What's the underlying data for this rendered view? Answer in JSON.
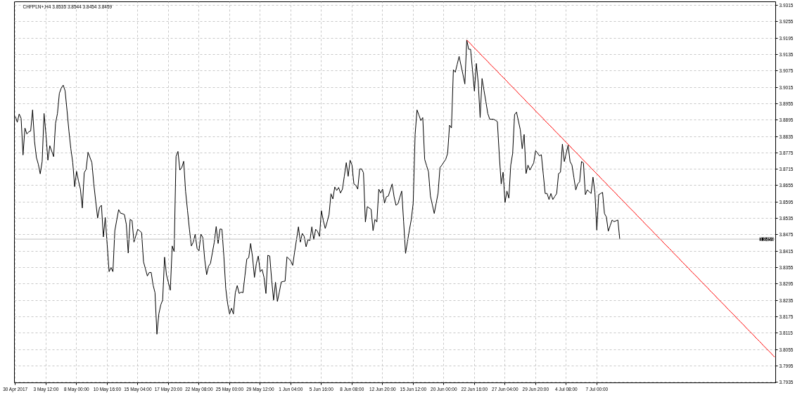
{
  "chart_data": {
    "type": "line",
    "title": "CHFPLN+,H4 3.8535 3.8544 3.8454 3.8459",
    "categories": [
      "30 Apr 2017",
      null,
      null,
      null,
      null,
      null,
      null,
      null,
      null,
      null,
      null,
      null,
      null,
      null,
      null,
      null,
      "3 May 12:00",
      null,
      null,
      null,
      null,
      null,
      null,
      null,
      null,
      null,
      null,
      null,
      null,
      null,
      null,
      null,
      "8 May 00:00",
      null,
      null,
      null,
      null,
      null,
      null,
      null,
      null,
      null,
      null,
      null,
      null,
      null,
      null,
      null,
      "10 May 16:00",
      null,
      null,
      null,
      null,
      null,
      null,
      null,
      null,
      null,
      null,
      null,
      null,
      null,
      null,
      null,
      "15 May 04:00",
      null,
      null,
      null,
      null,
      null,
      null,
      null,
      null,
      null,
      null,
      null,
      null,
      null,
      null,
      null,
      "17 May 20:00",
      null,
      null,
      null,
      null,
      null,
      null,
      null,
      null,
      null,
      null,
      null,
      null,
      null,
      null,
      null,
      "22 May 08:00",
      null,
      null,
      null,
      null,
      null,
      null,
      null,
      null,
      null,
      null,
      null,
      null,
      null,
      null,
      null,
      "25 May 00:00",
      null,
      null,
      null,
      null,
      null,
      null,
      null,
      null,
      null,
      null,
      null,
      null,
      null,
      null,
      null,
      "29 May 12:00",
      null,
      null,
      null,
      null,
      null,
      null,
      null,
      null,
      null,
      null,
      null,
      null,
      null,
      null,
      null,
      "1 Jun 04:00",
      null,
      null,
      null,
      null,
      null,
      null,
      null,
      null,
      null,
      null,
      null,
      null,
      null,
      null,
      null,
      "5 Jun 16:00",
      null,
      null,
      null,
      null,
      null,
      null,
      null,
      null,
      null,
      null,
      null,
      null,
      null,
      null,
      null,
      "8 Jun 08:00",
      null,
      null,
      null,
      null,
      null,
      null,
      null,
      null,
      null,
      null,
      null,
      null,
      null,
      null,
      null,
      "12 Jun 20:00",
      null,
      null,
      null,
      null,
      null,
      null,
      null,
      null,
      null,
      null,
      null,
      null,
      null,
      null,
      null,
      "15 Jun 12:00",
      null,
      null,
      null,
      null,
      null,
      null,
      null,
      null,
      null,
      null,
      null,
      null,
      null,
      null,
      null,
      "20 Jun 00:00",
      null,
      null,
      null,
      null,
      null,
      null,
      null,
      null,
      null,
      null,
      null,
      null,
      null,
      null,
      null,
      "22 Jun 16:00",
      null,
      null,
      null,
      null,
      null,
      null,
      null,
      null,
      null,
      null,
      null,
      null,
      null,
      null,
      null,
      "27 Jun 04:00",
      null,
      null,
      null,
      null,
      null,
      null,
      null,
      null,
      null,
      null,
      null,
      null,
      null,
      null,
      null,
      "29 Jun 20:00",
      null,
      null,
      null,
      null,
      null,
      null,
      null,
      null,
      null,
      null,
      null,
      null,
      null,
      null,
      null,
      "4 Jul 08:00",
      null,
      null,
      null,
      null,
      null,
      null,
      null,
      null,
      null,
      null,
      null,
      null,
      null,
      null,
      null,
      "7 Jul 00:00",
      null,
      null,
      null,
      null,
      null,
      null,
      null,
      null,
      null,
      null,
      null,
      null,
      null,
      null,
      null,
      null,
      null,
      null,
      null,
      null,
      null,
      null,
      null,
      null,
      null,
      null,
      null,
      null,
      null,
      null,
      null,
      null,
      null,
      null,
      null,
      null,
      null,
      null,
      null,
      null,
      null,
      null,
      null,
      null,
      null,
      null,
      null,
      null,
      null,
      null,
      null,
      null,
      null,
      null,
      null,
      null,
      null,
      null,
      null,
      null,
      null,
      null,
      null,
      null,
      null,
      null,
      null,
      null,
      null,
      null,
      null,
      null,
      null,
      null,
      null,
      null,
      null,
      null,
      null,
      null,
      null,
      null,
      null,
      null,
      null,
      null,
      null,
      null,
      null,
      null,
      null,
      null,
      null
    ],
    "ylim": [
      3.7933,
      3.9328
    ],
    "yticks": [
      3.7935,
      3.7995,
      3.8055,
      3.8115,
      3.8175,
      3.8235,
      3.8295,
      3.8355,
      3.8415,
      3.8475,
      3.8535,
      3.8595,
      3.8655,
      3.8715,
      3.8775,
      3.8835,
      3.8895,
      3.8955,
      3.9015,
      3.9075,
      3.9135,
      3.9195,
      3.9255,
      3.9315
    ],
    "grid": true,
    "series": [
      {
        "color": "#000000",
        "values": [
          3.8908,
          3.8887,
          3.8917,
          3.8901,
          3.8767,
          3.8866,
          3.8844,
          3.8852,
          3.8855,
          3.8932,
          3.8818,
          3.8758,
          3.8733,
          3.8698,
          3.8743,
          3.8919,
          3.8842,
          3.8748,
          3.8801,
          3.8781,
          3.8761,
          3.8883,
          3.8919,
          3.8993,
          3.9012,
          3.9023,
          3.9002,
          3.893,
          3.8855,
          3.879,
          3.8739,
          3.8651,
          3.8707,
          3.8672,
          3.8642,
          3.8573,
          3.8702,
          3.8715,
          3.8777,
          3.8758,
          3.8739,
          3.8661,
          3.8598,
          3.8536,
          3.8575,
          3.8583,
          3.8467,
          3.8538,
          3.8439,
          3.834,
          3.8355,
          3.834,
          3.849,
          3.8529,
          3.8567,
          3.8554,
          3.8552,
          3.8549,
          3.8513,
          3.8408,
          3.8531,
          3.8527,
          3.8448,
          3.8472,
          3.8495,
          3.8489,
          3.8483,
          3.8376,
          3.835,
          3.8324,
          3.8337,
          3.8337,
          3.8291,
          3.8263,
          3.8111,
          3.8185,
          3.8218,
          3.8236,
          3.8393,
          3.8328,
          3.83,
          3.8272,
          3.8434,
          3.8413,
          3.8762,
          3.878,
          3.8712,
          3.8721,
          3.8744,
          3.8633,
          3.8564,
          3.8495,
          3.8434,
          3.8448,
          3.8477,
          3.8425,
          3.8416,
          3.8477,
          3.8465,
          3.8384,
          3.8329,
          3.836,
          3.837,
          3.8409,
          3.8448,
          3.8505,
          3.8443,
          3.8496,
          3.8495,
          3.8397,
          3.8278,
          3.8222,
          3.8185,
          3.8206,
          3.8185,
          3.8263,
          3.8289,
          3.826,
          3.8265,
          3.8263,
          3.8324,
          3.8386,
          3.8391,
          3.8443,
          3.8393,
          3.8319,
          3.837,
          3.8397,
          3.834,
          3.8348,
          3.8319,
          3.826,
          3.84,
          3.8397,
          3.8309,
          3.8236,
          3.8301,
          3.8231,
          3.8265,
          3.8302,
          3.8304,
          3.8305,
          3.8394,
          3.8387,
          3.8379,
          3.8363,
          3.8412,
          3.8458,
          3.8504,
          3.8448,
          3.848,
          3.8469,
          3.8431,
          3.8457,
          3.8454,
          3.8504,
          3.8457,
          3.8495,
          3.8487,
          3.8469,
          3.8563,
          3.8527,
          3.8498,
          3.8522,
          3.8549,
          3.8625,
          3.8606,
          3.865,
          3.8637,
          3.8648,
          3.8628,
          3.8642,
          3.869,
          3.8739,
          3.8689,
          3.8748,
          3.873,
          3.8661,
          3.8656,
          3.8642,
          3.8716,
          3.8716,
          3.8702,
          3.8522,
          3.8578,
          3.8573,
          3.8568,
          3.849,
          3.8531,
          3.8522,
          3.8642,
          3.8628,
          3.8642,
          3.8591,
          3.8614,
          3.8617,
          3.8639,
          3.8661,
          3.8614,
          3.8583,
          3.8588,
          3.8612,
          3.8635,
          3.8523,
          3.8407,
          3.845,
          3.8492,
          3.8531,
          3.8591,
          3.8842,
          3.8932,
          3.8913,
          3.8893,
          3.8904,
          3.8751,
          3.8728,
          3.8705,
          3.8617,
          3.8585,
          3.8553,
          3.859,
          3.8627,
          3.8721,
          3.873,
          3.8741,
          3.8751,
          3.8773,
          3.8876,
          3.8866,
          3.9079,
          3.907,
          3.9099,
          3.9128,
          3.9095,
          3.9062,
          3.9027,
          3.9188,
          3.9154,
          3.9154,
          3.9078,
          3.9001,
          3.9102,
          3.9031,
          3.8904,
          3.9047,
          3.9004,
          3.8962,
          3.8919,
          3.8898,
          3.8898,
          3.8898,
          3.8894,
          3.8889,
          3.8768,
          3.8661,
          3.8704,
          3.8593,
          3.8635,
          3.8609,
          3.873,
          3.8773,
          3.8915,
          3.8924,
          3.8892,
          3.8859,
          3.879,
          3.8842,
          3.8699,
          3.873,
          3.8712,
          3.8725,
          3.8738,
          3.8783,
          3.8774,
          3.8764,
          3.8768,
          3.8697,
          3.8626,
          3.8626,
          3.8604,
          3.8626,
          3.8604,
          3.8615,
          3.8626,
          3.8699,
          3.8704,
          3.8807,
          3.8743,
          3.8773,
          3.8803,
          3.8743,
          3.873,
          3.8685,
          3.8639,
          3.8661,
          3.8669,
          3.8743,
          3.8738,
          3.8622,
          3.8639,
          3.8633,
          3.8626,
          3.8686,
          3.863,
          3.8492,
          3.8622,
          3.8626,
          3.863,
          3.8553,
          3.854,
          3.8488,
          3.8509,
          3.8529,
          3.8523,
          3.8526,
          3.8529,
          3.8459,
          null,
          null,
          null,
          null,
          null,
          null,
          null,
          null,
          null,
          null,
          null,
          null,
          null,
          null,
          null,
          null,
          null,
          null,
          null,
          null,
          null,
          null,
          null,
          null,
          null,
          null,
          null,
          null,
          null,
          null,
          null,
          null,
          null,
          null,
          null,
          null,
          null,
          null,
          null,
          null,
          null,
          null,
          null,
          null,
          null,
          null,
          null,
          null,
          null,
          null,
          null,
          null,
          null,
          null,
          null,
          null,
          null,
          null,
          null,
          null,
          null,
          null,
          null,
          null,
          null,
          null,
          null,
          null,
          null,
          null,
          null,
          null,
          null,
          null,
          null,
          null,
          null,
          null,
          null,
          null,
          null
        ]
      },
      {
        "color": "#ff0000",
        "values": [
          null,
          null,
          null,
          null,
          null,
          null,
          null,
          null,
          null,
          null,
          null,
          null,
          null,
          null,
          null,
          null,
          null,
          null,
          null,
          null,
          null,
          null,
          null,
          null,
          null,
          null,
          null,
          null,
          null,
          null,
          null,
          null,
          null,
          null,
          null,
          null,
          null,
          null,
          null,
          null,
          null,
          null,
          null,
          null,
          null,
          null,
          null,
          null,
          null,
          null,
          null,
          null,
          null,
          null,
          null,
          null,
          null,
          null,
          null,
          null,
          null,
          null,
          null,
          null,
          null,
          null,
          null,
          null,
          null,
          null,
          null,
          null,
          null,
          null,
          null,
          null,
          null,
          null,
          null,
          null,
          null,
          null,
          null,
          null,
          null,
          null,
          null,
          null,
          null,
          null,
          null,
          null,
          null,
          null,
          null,
          null,
          null,
          null,
          null,
          null,
          null,
          null,
          null,
          null,
          null,
          null,
          null,
          null,
          null,
          null,
          null,
          null,
          null,
          null,
          null,
          null,
          null,
          null,
          null,
          null,
          null,
          null,
          null,
          null,
          null,
          null,
          null,
          null,
          null,
          null,
          null,
          null,
          null,
          null,
          null,
          null,
          null,
          null,
          null,
          null,
          null,
          null,
          null,
          null,
          null,
          null,
          null,
          null,
          null,
          null,
          null,
          null,
          null,
          null,
          null,
          null,
          null,
          null,
          null,
          null,
          null,
          null,
          null,
          null,
          null,
          null,
          null,
          null,
          null,
          null,
          null,
          null,
          null,
          null,
          null,
          null,
          null,
          null,
          null,
          null,
          null,
          null,
          null,
          null,
          null,
          null,
          null,
          null,
          null,
          null,
          null,
          null,
          null,
          null,
          null,
          null,
          null,
          null,
          null,
          null,
          null,
          null,
          null,
          null,
          null,
          null,
          null,
          null,
          null,
          null,
          null,
          null,
          null,
          null,
          null,
          null,
          null,
          null,
          null,
          null,
          null,
          null,
          null,
          null,
          null,
          null,
          null,
          null,
          null,
          null,
          null,
          null,
          null,
          null,
          null,
          null,
          3.9188,
          3.9181,
          3.9174,
          3.9166,
          3.9159,
          3.9152,
          3.9145,
          3.9138,
          3.913,
          3.9123,
          3.9116,
          3.9109,
          3.9101,
          3.9094,
          3.9087,
          3.908,
          3.9073,
          3.9065,
          3.9058,
          3.9051,
          3.9044,
          3.9037,
          3.9029,
          3.9022,
          3.9015,
          3.9008,
          3.9001,
          3.8993,
          3.8986,
          3.8979,
          3.8972,
          3.8964,
          3.8957,
          3.895,
          3.8943,
          3.8936,
          3.8928,
          3.8921,
          3.8914,
          3.8907,
          3.89,
          3.8892,
          3.8885,
          3.8878,
          3.8871,
          3.8864,
          3.8856,
          3.8849,
          3.8842,
          3.8835,
          3.8828,
          3.882,
          3.8813,
          3.8806,
          3.8799,
          3.8791,
          3.8784,
          3.8777,
          3.877,
          3.8763,
          3.8755,
          3.8748,
          3.8741,
          3.8734,
          3.8727,
          3.8719,
          3.8712,
          3.8705,
          3.8698,
          3.8691,
          3.8683,
          3.8676,
          3.8669,
          3.8662,
          3.8654,
          3.8647,
          3.864,
          3.8633,
          3.8626,
          3.8618,
          3.8611,
          3.8604,
          3.8597,
          3.859,
          3.8582,
          3.8575,
          3.8568,
          3.8561,
          3.8554,
          3.8546,
          3.8539,
          3.8532,
          3.8525,
          3.8517,
          3.851,
          3.8503,
          3.8496,
          3.8489,
          3.8481,
          3.8474,
          3.8467,
          3.846,
          3.8453,
          3.8445,
          3.8438,
          3.8431,
          3.8424,
          3.8417,
          3.8409,
          3.8402,
          3.8395,
          3.8388,
          3.838,
          3.8373,
          3.8366,
          3.8359,
          3.8352,
          3.8344,
          3.8337,
          3.833,
          3.8323,
          3.8316,
          3.8308,
          3.8301,
          3.8294,
          3.8287,
          3.828,
          3.8272,
          3.8265,
          3.8258,
          3.8251,
          3.8243,
          3.8236,
          3.8229,
          3.8222,
          3.8215,
          3.8207,
          3.82,
          3.8193,
          3.8186,
          3.8179,
          3.8171,
          3.8164,
          3.8157,
          3.815,
          3.8143,
          3.8135,
          3.8128,
          3.8121,
          3.8114,
          3.8107,
          3.8099,
          3.8092,
          3.8085,
          3.8078,
          3.807,
          3.8063,
          3.8056,
          3.8049,
          3.8042,
          3.8034,
          3.8027
        ]
      }
    ],
    "ref_lines": [
      {
        "axis": "y",
        "value": 3.8459,
        "label": "3.8459",
        "color": "#c0c0c0"
      }
    ]
  }
}
